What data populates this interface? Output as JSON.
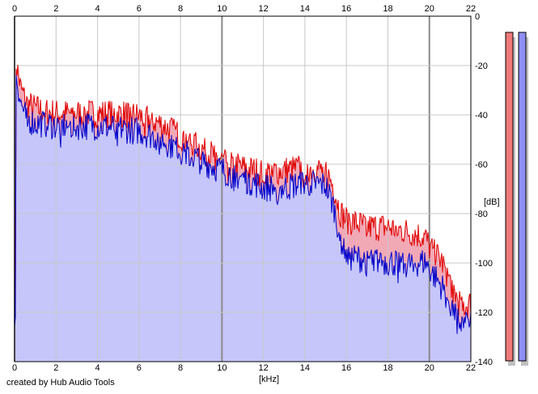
{
  "credit": "created by Hub Audio Tools",
  "colors": {
    "left_channel": "#e00000",
    "right_channel": "#0000c8",
    "left_fill": "#f2a9b6",
    "right_fill": "#c6c6fb",
    "left_meter": "#f07a7a",
    "right_meter": "#8e8ef5",
    "meter_shadow": "#c0c0c0",
    "grid": "#c8c8c8",
    "grid_major": "#8a8a8a"
  },
  "chart_data": {
    "type": "area",
    "xlabel": "[kHz]",
    "ylabel": "[dB]",
    "xlim": [
      0,
      22
    ],
    "ylim": [
      -140,
      0
    ],
    "x_ticks": [
      0,
      2,
      4,
      6,
      8,
      10,
      12,
      14,
      16,
      18,
      20,
      22
    ],
    "y_ticks": [
      0,
      -20,
      -40,
      -60,
      -80,
      -100,
      -120,
      -140
    ],
    "x_major_gridlines": [
      0,
      10,
      20
    ],
    "grid": true,
    "series": [
      {
        "channel": "left",
        "color": "#e00000",
        "x": [
          0.05,
          0.3,
          0.6,
          1.0,
          1.5,
          2.0,
          3.0,
          4.0,
          5.0,
          6.0,
          7.0,
          8.0,
          9.0,
          10.0,
          11.0,
          12.0,
          13.0,
          14.0,
          15.0,
          15.4,
          15.7,
          16.0,
          17.0,
          18.0,
          19.0,
          19.8,
          20.0,
          20.6,
          21.0,
          21.4,
          21.7,
          22.0
        ],
        "y": [
          -18,
          -30,
          -36,
          -38,
          -39,
          -40,
          -40,
          -40,
          -40,
          -41,
          -44,
          -49,
          -54,
          -59,
          -62,
          -64,
          -63,
          -62,
          -63,
          -70,
          -80,
          -83,
          -86,
          -86,
          -88,
          -90,
          -94,
          -100,
          -108,
          -116,
          -118,
          -117
        ]
      },
      {
        "channel": "right",
        "color": "#0000c8",
        "x": [
          0.05,
          0.3,
          0.6,
          1.0,
          1.5,
          2.0,
          3.0,
          4.0,
          5.0,
          6.0,
          7.0,
          8.0,
          9.0,
          10.0,
          11.0,
          12.0,
          13.0,
          14.0,
          15.0,
          15.4,
          15.7,
          16.0,
          17.0,
          18.0,
          19.0,
          19.8,
          20.0,
          20.6,
          21.0,
          21.4,
          21.7,
          22.0
        ],
        "y": [
          -22,
          -36,
          -42,
          -44,
          -44,
          -45,
          -45,
          -45,
          -46,
          -47,
          -50,
          -55,
          -59,
          -63,
          -66,
          -70,
          -70,
          -68,
          -69,
          -78,
          -90,
          -98,
          -99,
          -100,
          -101,
          -100,
          -103,
          -110,
          -117,
          -124,
          -126,
          -124
        ]
      }
    ],
    "meters": [
      {
        "channel": "left",
        "color": "#f07a7a",
        "level": 1.0
      },
      {
        "channel": "right",
        "color": "#8e8ef5",
        "level": 1.0
      }
    ]
  }
}
